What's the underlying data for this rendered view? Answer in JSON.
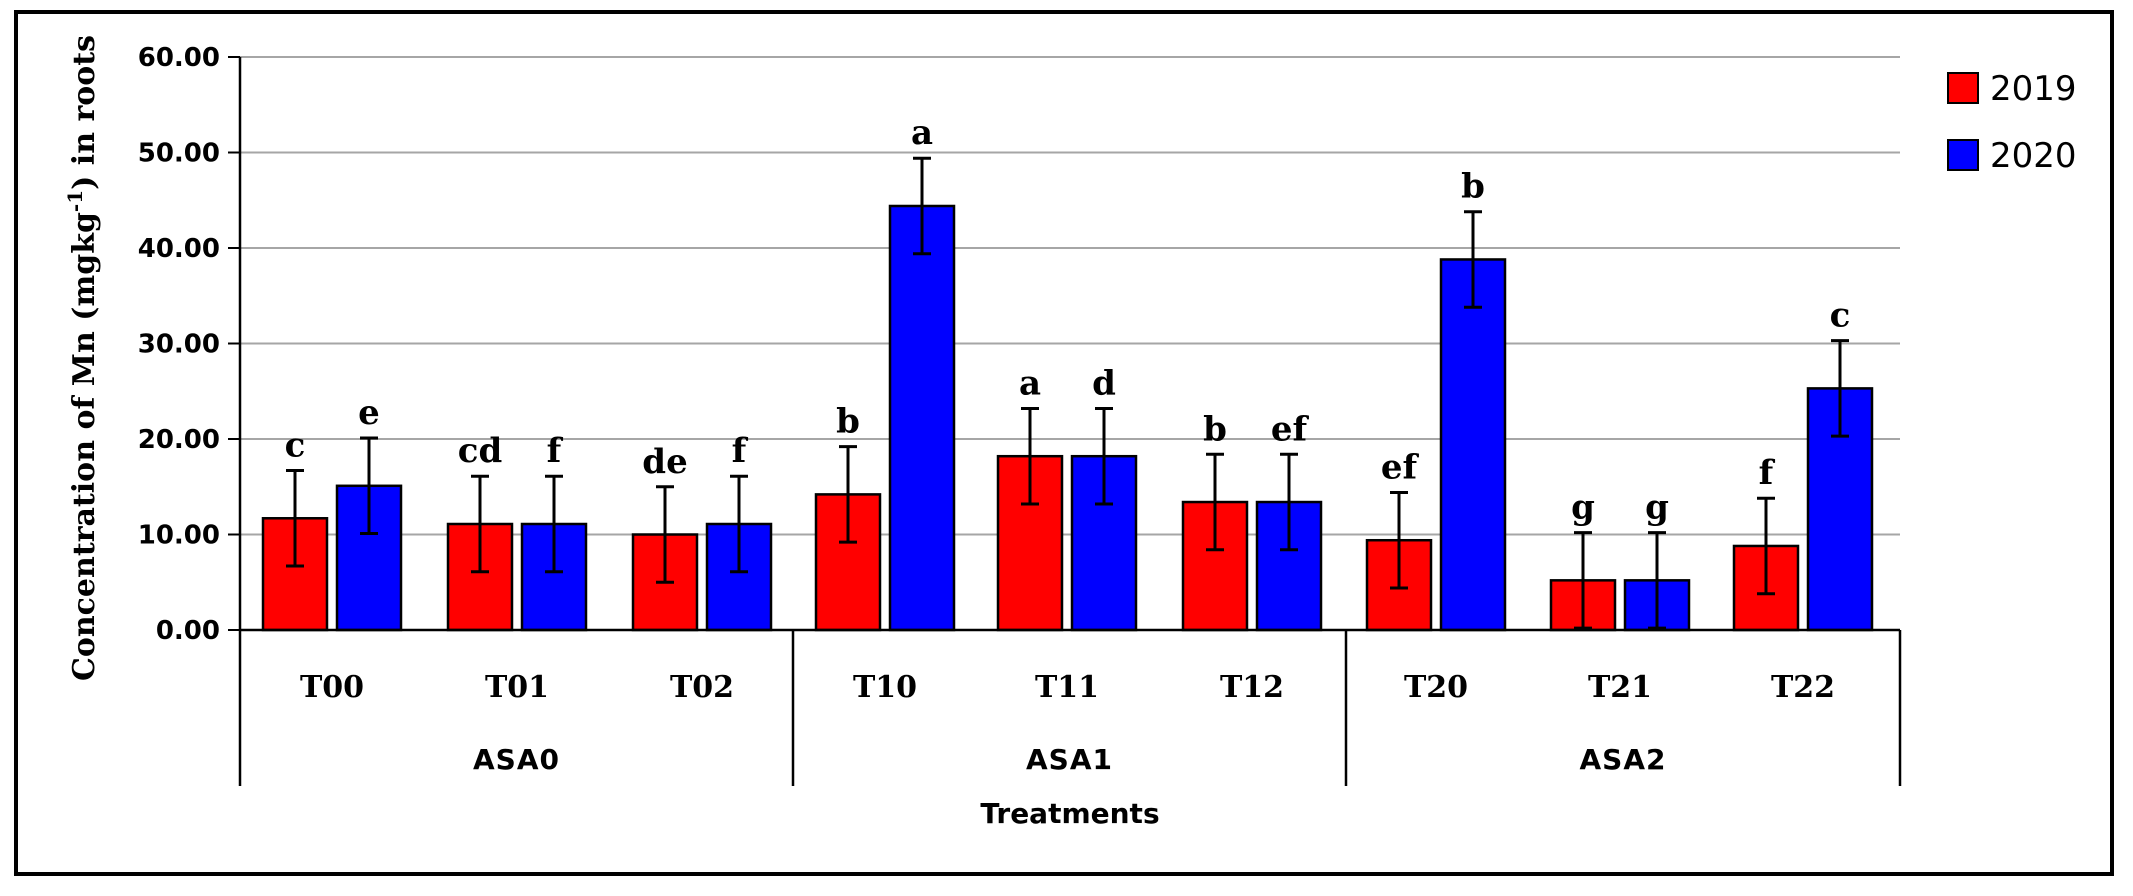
{
  "chart_data": {
    "type": "bar",
    "title": "",
    "xlabel": "Treatments",
    "ylabel": "Concentration of Mn (mgkg⁻¹) in roots",
    "ylabel_parts": {
      "before": "Concentration of Mn (mgkg",
      "sup": "-1",
      "after": ") in roots"
    },
    "ylim": [
      0,
      60
    ],
    "yticks": [
      "0.00",
      "10.00",
      "20.00",
      "30.00",
      "40.00",
      "50.00",
      "60.00"
    ],
    "ytick_values": [
      0,
      10,
      20,
      30,
      40,
      50,
      60
    ],
    "grid": true,
    "legend_position": "top-right",
    "categories": [
      "T00",
      "T01",
      "T02",
      "T10",
      "T11",
      "T12",
      "T20",
      "T21",
      "T22"
    ],
    "groups": [
      {
        "name": "ASA0",
        "categories": [
          "T00",
          "T01",
          "T02"
        ]
      },
      {
        "name": "ASA1",
        "categories": [
          "T10",
          "T11",
          "T12"
        ]
      },
      {
        "name": "ASA2",
        "categories": [
          "T20",
          "T21",
          "T22"
        ]
      }
    ],
    "series": [
      {
        "name": "2019",
        "color": "#ff0000",
        "values": [
          11.7,
          11.1,
          10.0,
          14.2,
          18.2,
          13.4,
          9.4,
          5.2,
          8.8
        ],
        "errors": [
          5.0,
          5.0,
          5.0,
          5.0,
          5.0,
          5.0,
          5.0,
          5.0,
          5.0
        ],
        "letters": [
          "c",
          "cd",
          "de",
          "b",
          "a",
          "b",
          "ef",
          "g",
          "f"
        ]
      },
      {
        "name": "2020",
        "color": "#0000ff",
        "values": [
          15.1,
          11.1,
          11.1,
          44.4,
          18.2,
          13.4,
          38.8,
          5.2,
          25.3
        ],
        "errors": [
          5.0,
          5.0,
          5.0,
          5.0,
          5.0,
          5.0,
          5.0,
          5.0,
          5.0
        ],
        "letters": [
          "e",
          "f",
          "f",
          "a",
          "d",
          "ef",
          "b",
          "g",
          "c"
        ]
      }
    ]
  }
}
